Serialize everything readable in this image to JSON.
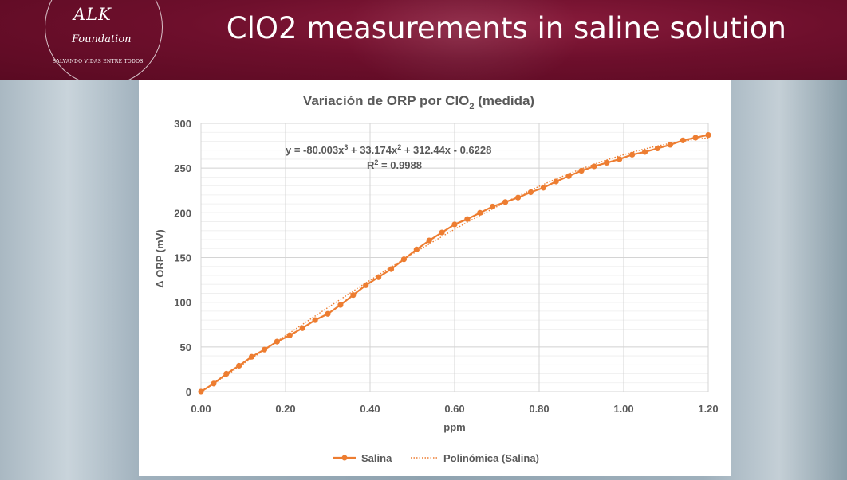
{
  "header": {
    "title": "ClO2 measurements in saline solution",
    "logo_text": "ALK",
    "logo_subtext": "Foundation",
    "logo_tagline": "SALVANDO VIDAS ENTRE TODOS",
    "bg_color": "#6e0f2c"
  },
  "chart_data": {
    "type": "line",
    "title": "Variación de ORP por ClO2 (medida)",
    "title_main": "Variación de ORP por ClO",
    "title_sub": "2",
    "title_tail": " (medida)",
    "xlabel": "ppm",
    "ylabel": "Δ ORP (mV)",
    "xlim": [
      0,
      1.2
    ],
    "ylim": [
      0,
      300
    ],
    "x_ticks": [
      "0.00",
      "0.20",
      "0.40",
      "0.60",
      "0.80",
      "1.00",
      "1.20"
    ],
    "y_ticks": [
      "0",
      "50",
      "100",
      "150",
      "200",
      "250",
      "300"
    ],
    "grid": true,
    "legend_position": "bottom",
    "series": [
      {
        "name": "Salina",
        "color": "#ed7d31",
        "x": [
          0.0,
          0.03,
          0.06,
          0.09,
          0.12,
          0.15,
          0.18,
          0.21,
          0.24,
          0.27,
          0.3,
          0.33,
          0.36,
          0.39,
          0.42,
          0.45,
          0.48,
          0.51,
          0.54,
          0.57,
          0.6,
          0.63,
          0.66,
          0.69,
          0.72,
          0.75,
          0.78,
          0.81,
          0.84,
          0.87,
          0.9,
          0.93,
          0.96,
          0.99,
          1.02,
          1.05,
          1.08,
          1.11,
          1.14,
          1.17,
          1.2
        ],
        "y": [
          0,
          9,
          20,
          29,
          39,
          47,
          56,
          63,
          71,
          80,
          87,
          97,
          108,
          119,
          128,
          137,
          148,
          159,
          169,
          178,
          187,
          193,
          200,
          207,
          212,
          217,
          223,
          228,
          235,
          241,
          247,
          252,
          256,
          260,
          265,
          268,
          272,
          276,
          281,
          284,
          287
        ]
      },
      {
        "name": "Polinómica (Salina)",
        "color": "#ed7d31",
        "style": "dotted",
        "coefficients": [
          -80.003,
          33.174,
          312.44,
          -0.6228
        ]
      }
    ],
    "annotations": [
      {
        "equation_prefix": "y = -80.003x",
        "exp1": "3",
        "equation_mid1": " + 33.174x",
        "exp2": "2",
        "equation_tail": " + 312.44x - 0.6228",
        "r2_prefix": "R",
        "r2_exp": "2",
        "r2_value": " = 0.9988"
      }
    ]
  }
}
